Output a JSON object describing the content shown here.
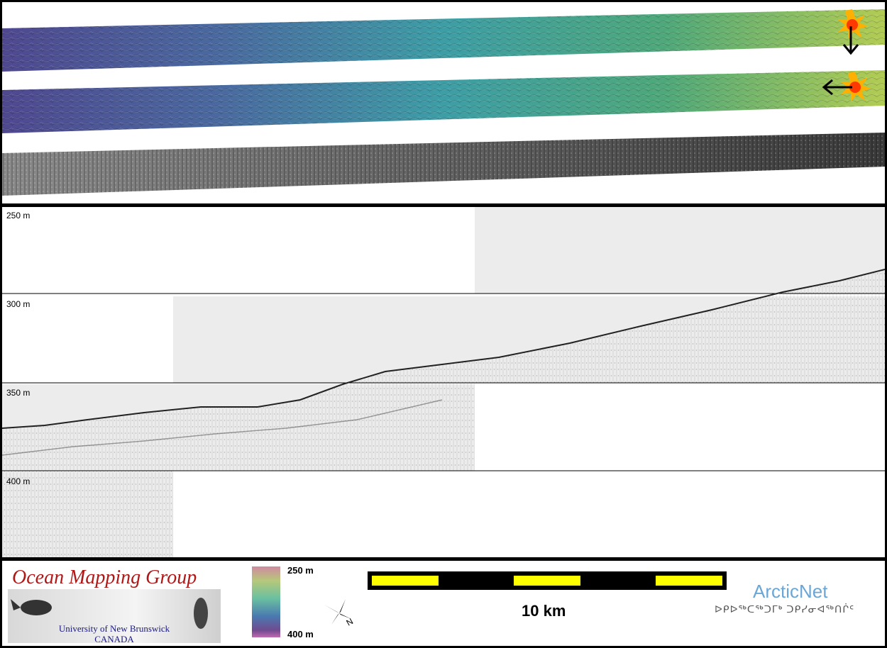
{
  "swaths": {
    "description_icons": [
      "sun-illumination-icon",
      "arrow-down-icon",
      "sun-illumination-icon",
      "arrow-left-icon"
    ],
    "colors": {
      "deep": "#4a4a9a",
      "mid": "#3fa2a0",
      "shallow": "#a6c84a"
    }
  },
  "profile": {
    "depth_labels": [
      "250 m",
      "300 m",
      "350 m",
      "400 m"
    ]
  },
  "footer": {
    "logo": {
      "title": "Ocean Mapping Group",
      "subtitle_line1": "University of New Brunswick",
      "subtitle_line2": "CANADA"
    },
    "colorbar": {
      "top_label": "250 m",
      "bottom_label": "400 m"
    },
    "north_arrow": {
      "letter": "N",
      "icon": "north-arrow-icon"
    },
    "scale_bar": {
      "label": "10 km",
      "colors": [
        "#000000",
        "#ffff00"
      ]
    },
    "partner": {
      "name": "ArcticNet",
      "inuktitut": "ᐅᑭᐅᖅᑕᖅᑐᒥᒃ ᑐᑭᓯᓂᐊᖅᑎᒌᑦ"
    }
  }
}
